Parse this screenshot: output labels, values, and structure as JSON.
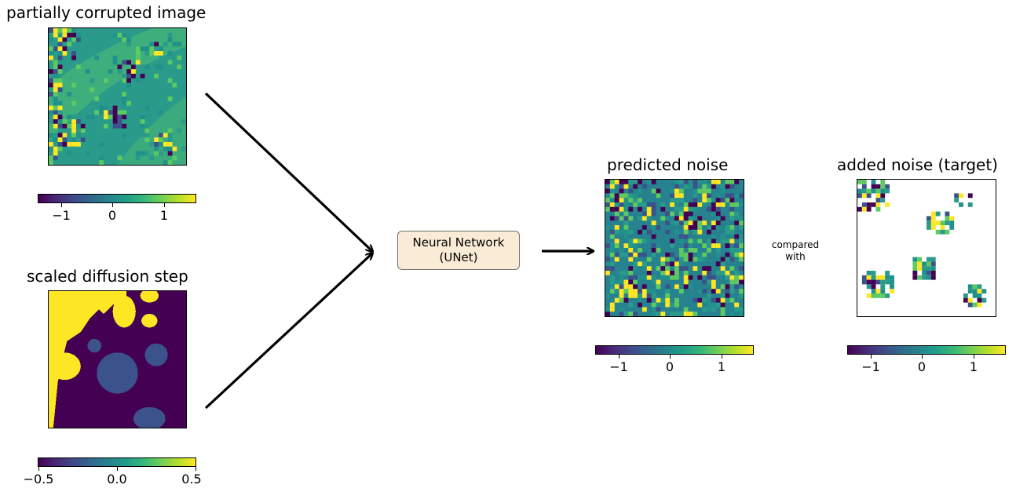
{
  "panels": {
    "corrupted": {
      "title": "partially corrupted image",
      "colorbar_ticks": [
        "−1",
        "0",
        "1"
      ]
    },
    "diffusion": {
      "title": "scaled diffusion step",
      "colorbar_ticks": [
        "−0.5",
        "0.0",
        "0.5"
      ]
    },
    "predicted": {
      "title": "predicted noise",
      "colorbar_ticks": [
        "−1",
        "0",
        "1"
      ]
    },
    "target": {
      "title": "added noise (target)",
      "colorbar_ticks": [
        "−1",
        "0",
        "1"
      ]
    }
  },
  "network": {
    "line1": "Neural Network",
    "line2": "(UNet)"
  },
  "comparison": {
    "line1": "compared",
    "line2": "with"
  },
  "colormap": "viridis",
  "colors": {
    "viridis_dark": "#440154",
    "viridis_blue": "#3b528b",
    "viridis_teal": "#21918c",
    "viridis_green": "#5ec962",
    "viridis_yellow": "#fde725",
    "box_fill": "#f9ebd6",
    "box_border": "#707070"
  }
}
